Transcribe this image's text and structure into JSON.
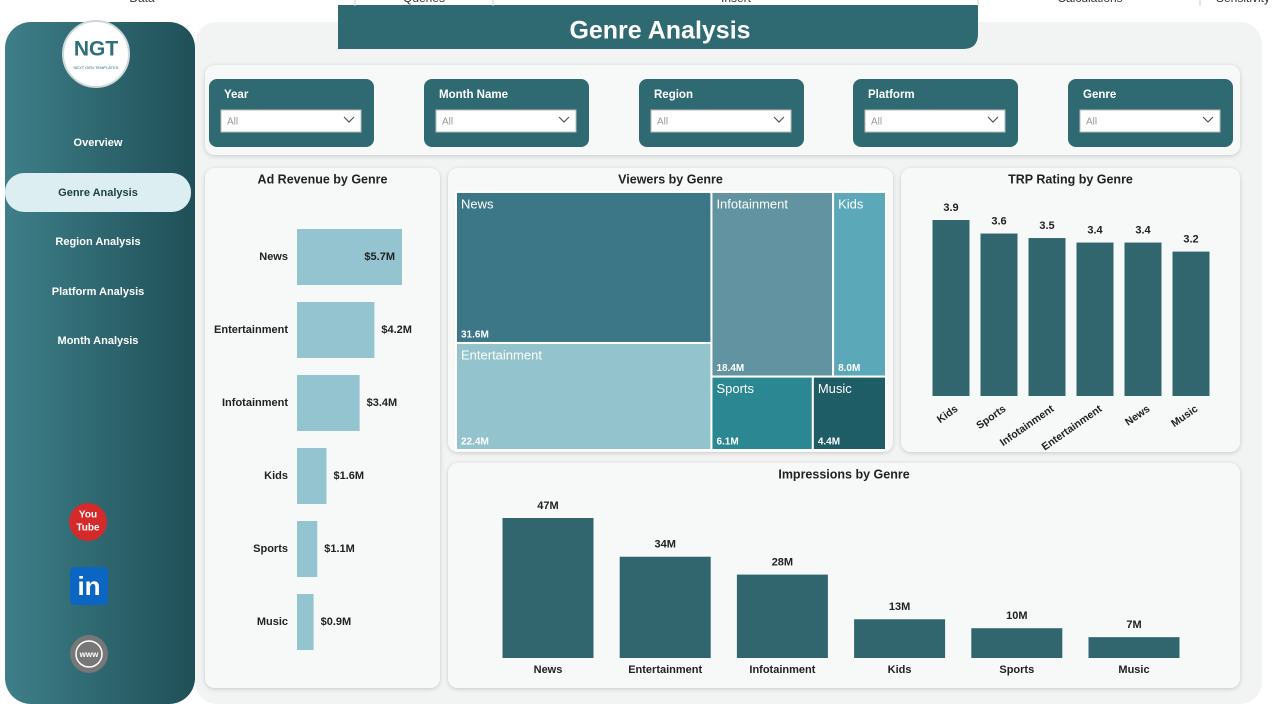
{
  "top_tabs": [
    "Data",
    "Queries",
    "Insert",
    "Calculations",
    "Sensitivity"
  ],
  "header": {
    "title": "Genre Analysis"
  },
  "logo": {
    "mark": "NGT",
    "tagline": "NEXT GEN TEMPLATES"
  },
  "nav": [
    "Overview",
    "Genre Analysis",
    "Region Analysis",
    "Platform Analysis",
    "Month Analysis"
  ],
  "social": {
    "youtube": [
      "You",
      "Tube"
    ],
    "linkedin": "in",
    "web": "www"
  },
  "filters": [
    {
      "label": "Year",
      "value": "All"
    },
    {
      "label": "Month Name",
      "value": "All"
    },
    {
      "label": "Region",
      "value": "All"
    },
    {
      "label": "Platform",
      "value": "All"
    },
    {
      "label": "Genre",
      "value": "All"
    }
  ],
  "chart_data": [
    {
      "type": "bar",
      "orientation": "horizontal",
      "title": "Ad Revenue by Genre",
      "categories": [
        "News",
        "Entertainment",
        "Infotainment",
        "Kids",
        "Sports",
        "Music"
      ],
      "values": [
        5.7,
        4.2,
        3.4,
        1.6,
        1.1,
        0.9
      ],
      "value_labels": [
        "$5.7M",
        "$4.2M",
        "$3.4M",
        "$1.6M",
        "$1.1M",
        "$0.9M"
      ],
      "color": "#94c4cf"
    },
    {
      "type": "treemap",
      "title": "Viewers by Genre",
      "categories": [
        "News",
        "Entertainment",
        "Infotainment",
        "Kids",
        "Sports",
        "Music"
      ],
      "values": [
        31.6,
        22.4,
        18.4,
        8.0,
        6.1,
        4.4
      ],
      "value_labels": [
        "31.6M",
        "22.4M",
        "18.4M",
        "8.0M",
        "6.1M",
        "4.4M"
      ],
      "colors": [
        "#3b7787",
        "#93c3cc",
        "#6193a0",
        "#5ba9b8",
        "#2b8893",
        "#1e5c66"
      ]
    },
    {
      "type": "bar",
      "orientation": "vertical",
      "title": "TRP Rating by Genre",
      "categories": [
        "Kids",
        "Sports",
        "Infotainment",
        "Entertainment",
        "News",
        "Music"
      ],
      "values": [
        3.9,
        3.6,
        3.5,
        3.4,
        3.4,
        3.2
      ],
      "color": "#31666f"
    },
    {
      "type": "bar",
      "orientation": "vertical",
      "title": "Impressions by Genre",
      "categories": [
        "News",
        "Entertainment",
        "Infotainment",
        "Kids",
        "Sports",
        "Music"
      ],
      "values": [
        47,
        34,
        28,
        13,
        10,
        7
      ],
      "value_labels": [
        "47M",
        "34M",
        "28M",
        "13M",
        "10M",
        "7M"
      ],
      "color": "#31666f"
    }
  ]
}
